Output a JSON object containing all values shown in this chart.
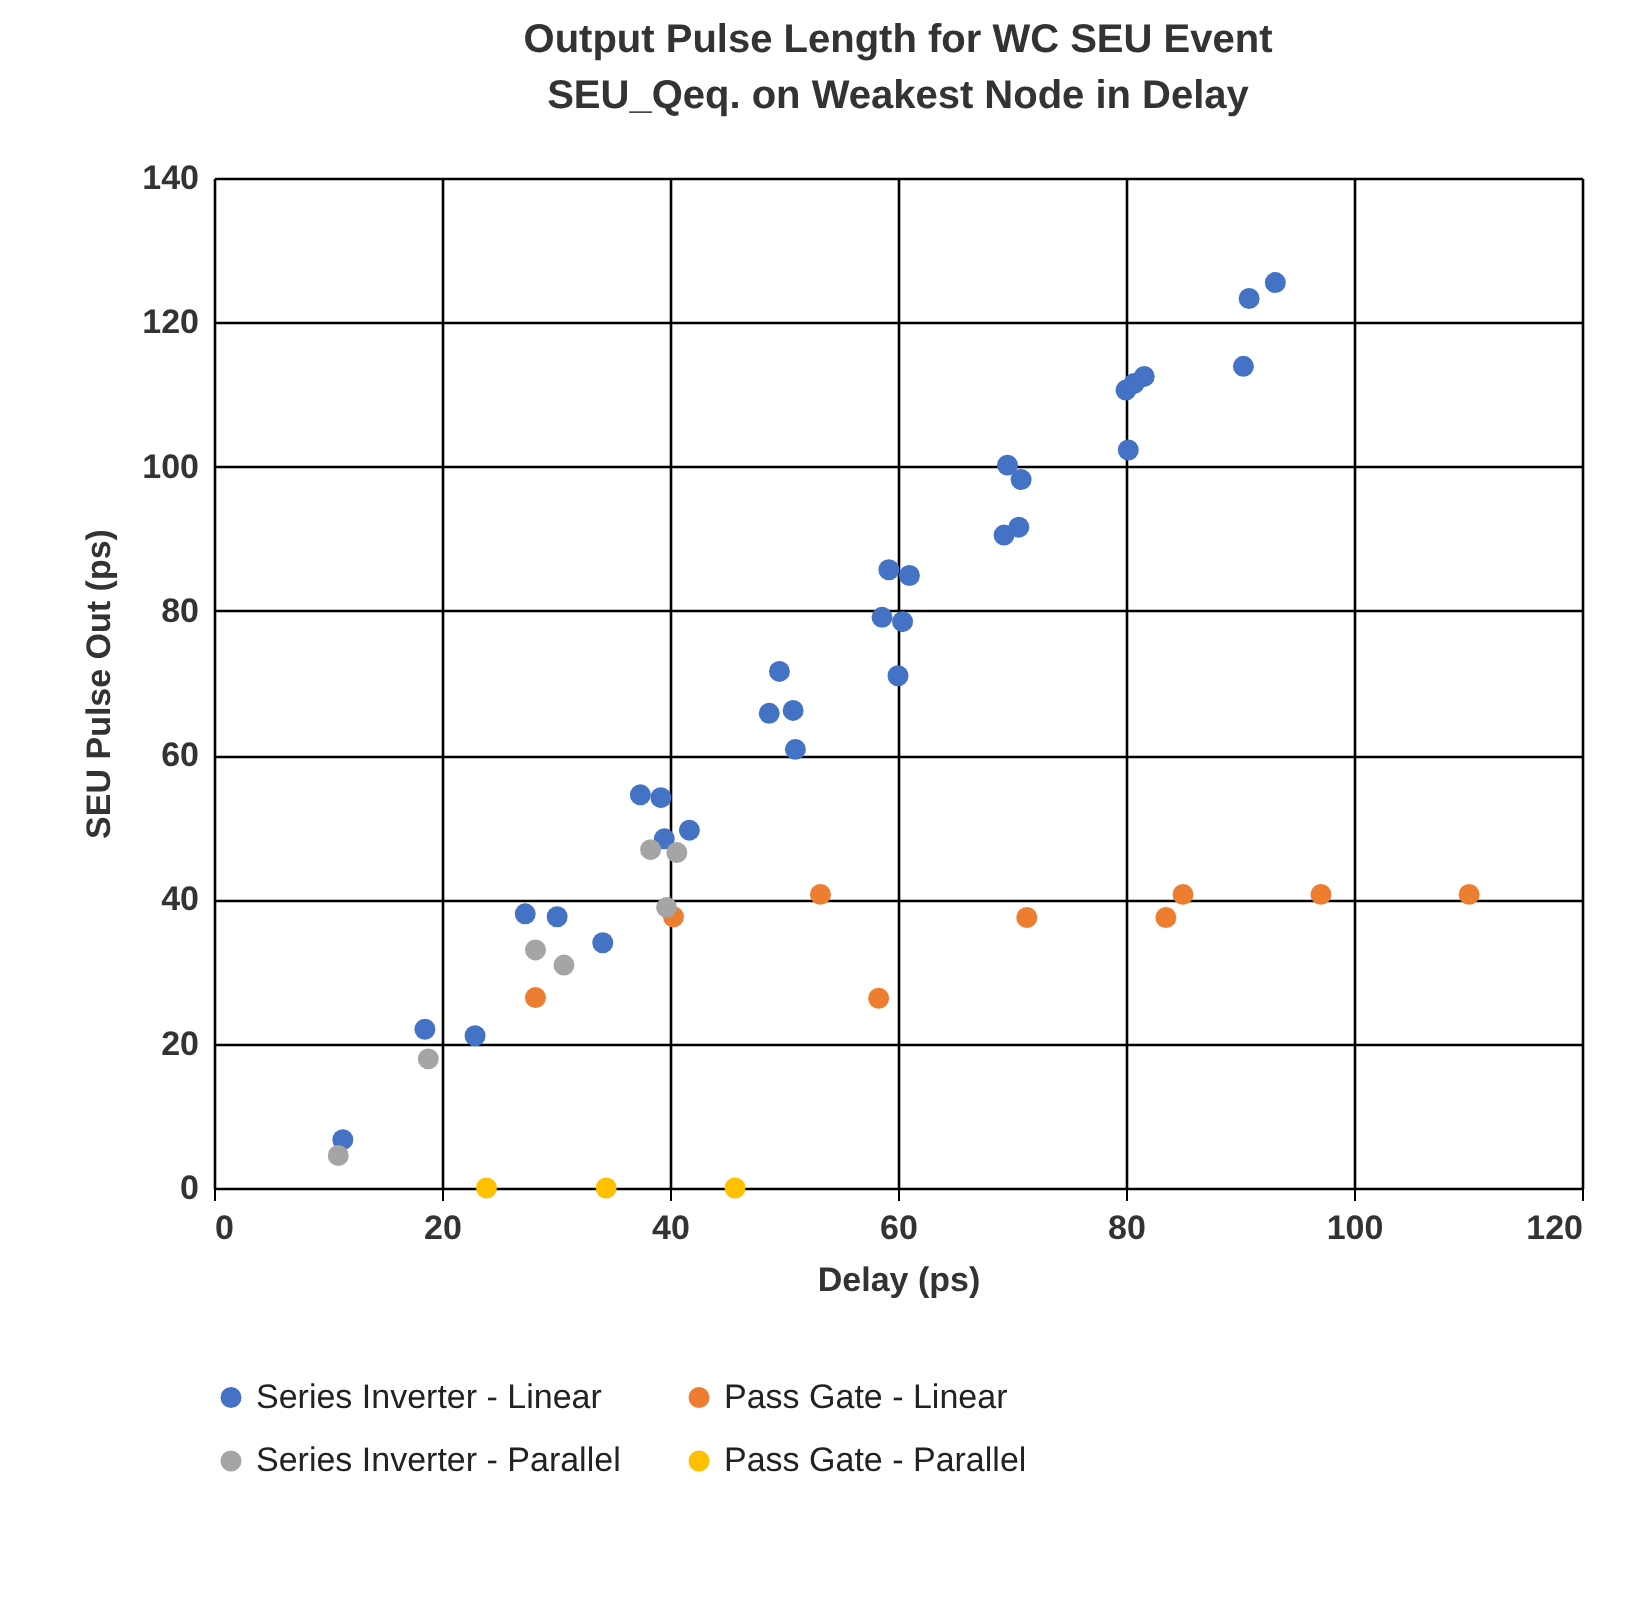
{
  "chart_data": {
    "type": "scatter",
    "title": "Output Pulse Length for WC SEU Event",
    "subtitle": "SEU_Qeq. on Weakest Node in Delay",
    "xlabel": "Delay (ps)",
    "ylabel": "SEU Pulse Out (ps)",
    "xlim": [
      0,
      120
    ],
    "xticks": [
      0,
      20,
      40,
      60,
      80,
      100,
      120
    ],
    "ylim": [
      0,
      140
    ],
    "yticks": [
      0,
      20,
      40,
      60,
      80,
      100,
      120,
      140
    ],
    "grid": true,
    "legend": "bottom",
    "marker": "circle",
    "series": [
      {
        "name": "Series Inverter - Linear",
        "color": "#4472c4",
        "x": [
          11.3,
          18.5,
          22.9,
          27.3,
          30.1,
          34.1,
          37.4,
          39.2,
          39.5,
          41.7,
          49.6,
          48.7,
          50.8,
          51.0,
          59.2,
          61.0,
          58.6,
          60.4,
          60.0,
          69.6,
          70.8,
          69.3,
          70.6,
          80.2,
          80.0,
          80.7,
          81.6,
          90.8,
          93.1,
          90.3
        ],
        "values": [
          6.7,
          22.0,
          21.1,
          38.0,
          37.6,
          34.0,
          54.5,
          54.1,
          48.4,
          49.6,
          71.6,
          65.8,
          66.2,
          60.8,
          85.7,
          84.9,
          79.1,
          78.5,
          71.0,
          100.2,
          98.2,
          90.5,
          91.6,
          102.3,
          110.6,
          111.5,
          112.5,
          123.3,
          125.5,
          113.9
        ]
      },
      {
        "name": "Pass Gate - Linear",
        "color": "#ed7d31",
        "x": [
          28.2,
          40.3,
          53.2,
          58.3,
          71.3,
          83.5,
          85.0,
          97.1,
          110.1
        ],
        "values": [
          26.4,
          37.6,
          40.7,
          26.3,
          37.5,
          37.5,
          40.7,
          40.7,
          40.7
        ]
      },
      {
        "name": "Series Inverter - Parallel",
        "color": "#a5a5a5",
        "x": [
          10.9,
          18.8,
          28.2,
          30.7,
          38.3,
          40.6,
          39.7
        ],
        "values": [
          4.5,
          17.9,
          33.0,
          30.9,
          46.9,
          46.5,
          38.9
        ]
      },
      {
        "name": "Pass Gate - Parallel",
        "color": "#ffc000",
        "x": [
          23.9,
          34.4,
          45.7
        ],
        "values": [
          0,
          0,
          0
        ]
      }
    ]
  }
}
